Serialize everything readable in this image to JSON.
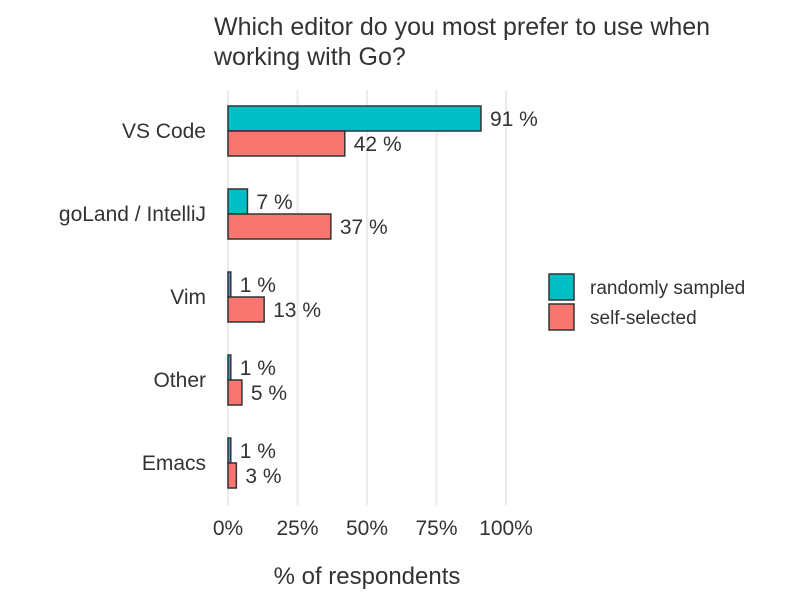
{
  "chart_data": {
    "type": "bar",
    "orientation": "horizontal",
    "title": "Which editor do you most prefer to use when working with Go?",
    "xlabel": "% of respondents",
    "ylabel": "",
    "xlim": [
      0,
      100
    ],
    "x_ticks": [
      0,
      25,
      50,
      75,
      100
    ],
    "x_tick_labels": [
      "0%",
      "25%",
      "50%",
      "75%",
      "100%"
    ],
    "grid": "vertical major gridlines",
    "legend_position": "right",
    "categories": [
      "VS Code",
      "goLand / IntelliJ",
      "Vim",
      "Other",
      "Emacs"
    ],
    "series": [
      {
        "name": "randomly sampled",
        "color": "#00BFC4",
        "values": [
          91,
          7,
          1,
          1,
          1
        ],
        "labels": [
          "91 %",
          "7 %",
          "1 %",
          "1 %",
          "1 %"
        ]
      },
      {
        "name": "self-selected",
        "color": "#F8766D",
        "values": [
          42,
          37,
          13,
          5,
          3
        ],
        "labels": [
          "42 %",
          "37 %",
          "13 %",
          "5 %",
          "3 %"
        ]
      }
    ]
  }
}
